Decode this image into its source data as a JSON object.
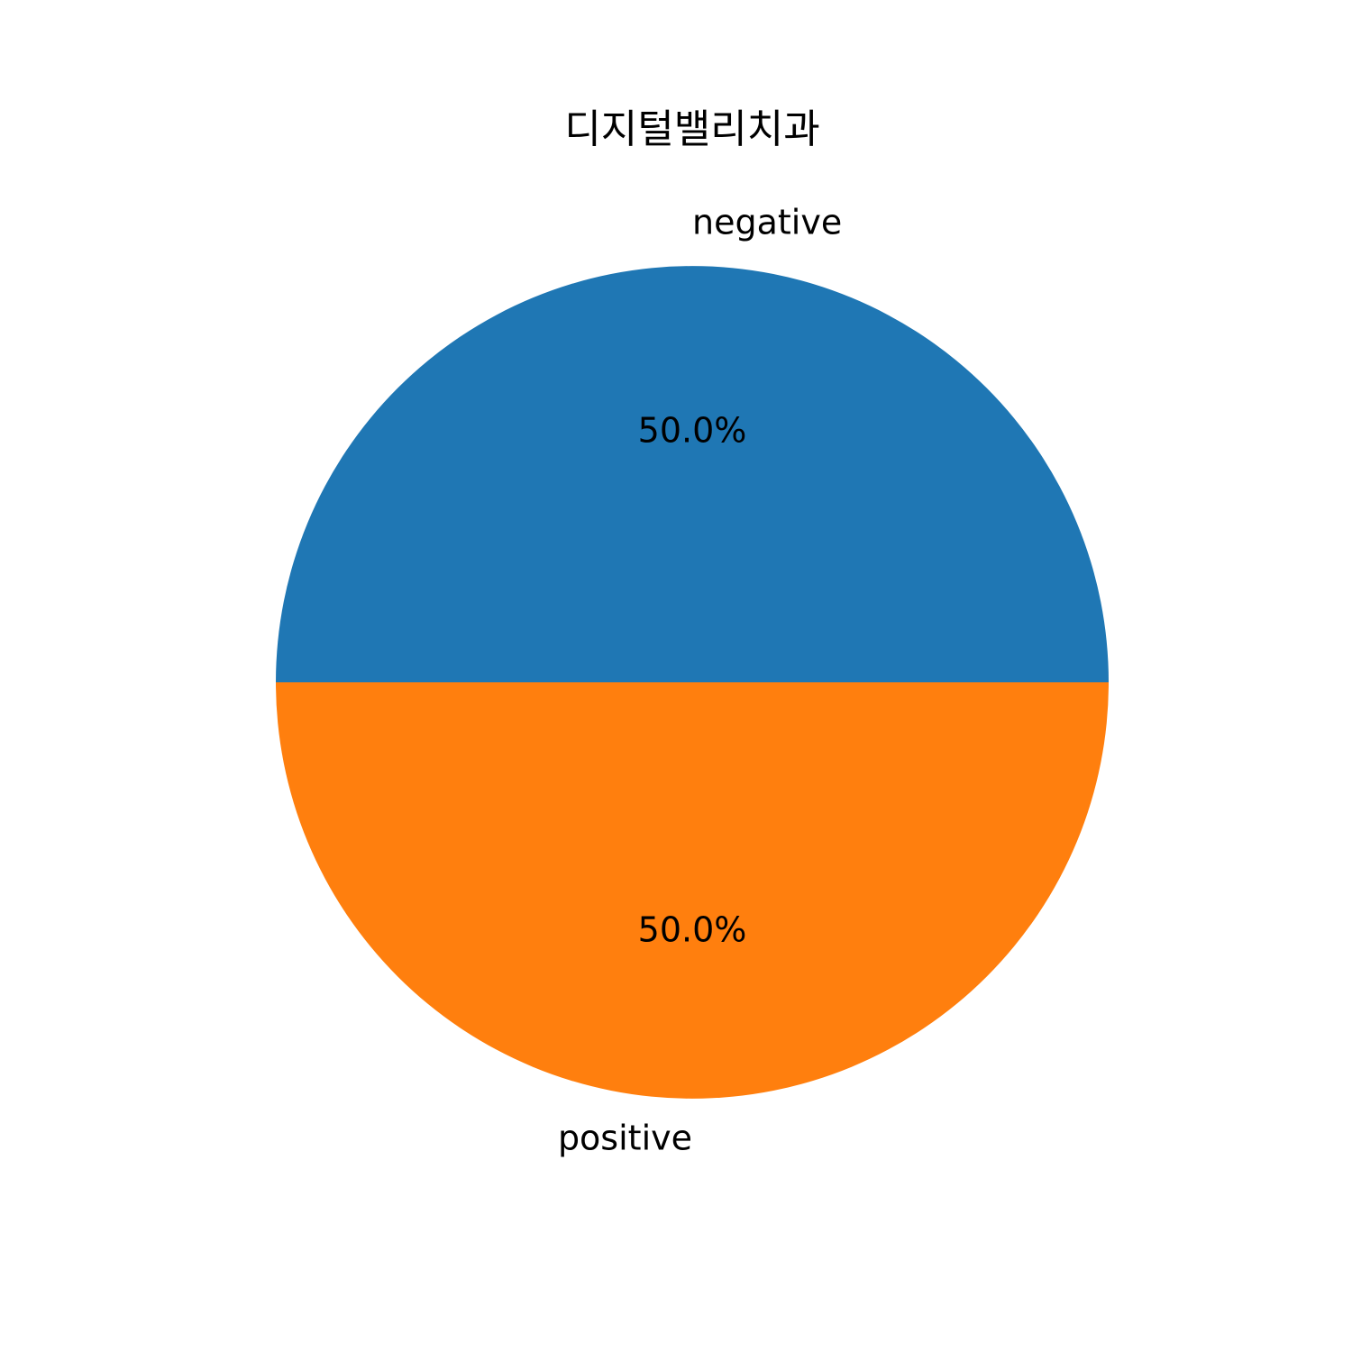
{
  "chart_data": {
    "type": "pie",
    "title": "디지털밸리치과",
    "categories": [
      "negative",
      "positive"
    ],
    "values": [
      50.0,
      50.0
    ],
    "percent_labels": [
      "50.0%",
      "50.0%"
    ],
    "colors": [
      "#1f77b4",
      "#ff7f0e"
    ],
    "start_angle_deg": 0,
    "direction": "counterclockwise",
    "legend": "none"
  }
}
